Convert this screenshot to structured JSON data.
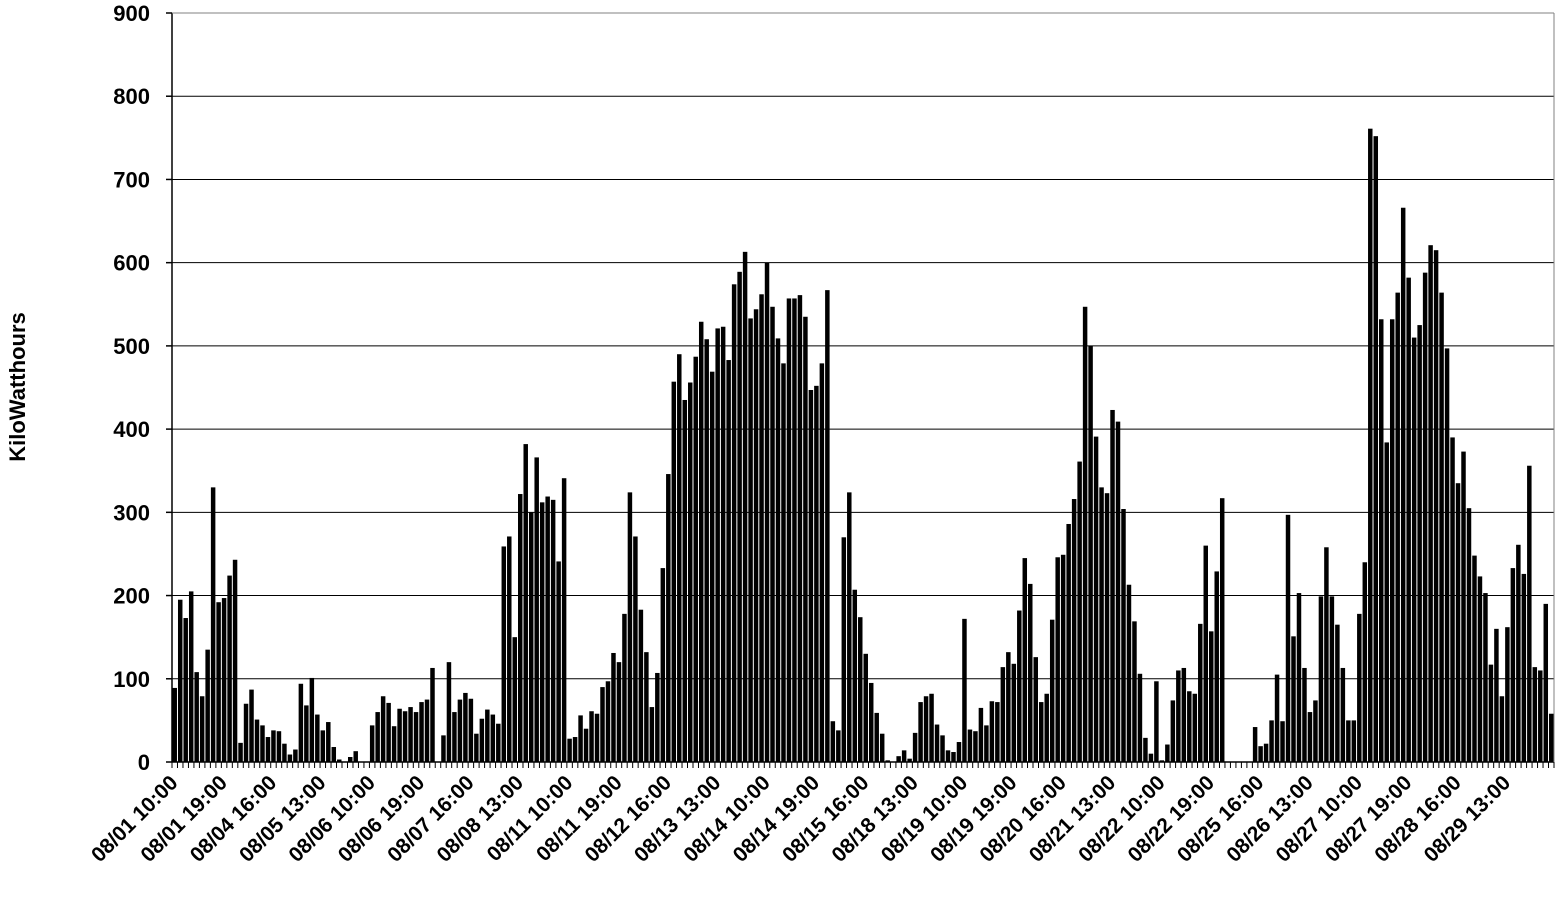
{
  "chart_data": {
    "type": "bar",
    "title": "",
    "xlabel": "",
    "ylabel": "KiloWatthours",
    "ylim": [
      0,
      900
    ],
    "yticks": [
      0,
      100,
      200,
      300,
      400,
      500,
      600,
      700,
      800,
      900
    ],
    "grid": true,
    "legend": "none",
    "colors": {
      "bar": "#000000",
      "bar_edge": "#ffffff",
      "grid": "#000000",
      "axis": "#000000"
    },
    "x_tick_labels": [
      "08/01 10:00",
      "08/01 19:00",
      "08/04 16:00",
      "08/05 13:00",
      "08/06 10:00",
      "08/06 19:00",
      "08/07 16:00",
      "08/08 13:00",
      "08/11 10:00",
      "08/11 19:00",
      "08/12 16:00",
      "08/13 13:00",
      "08/14 10:00",
      "08/14 19:00",
      "08/15 16:00",
      "08/18 13:00",
      "08/19 10:00",
      "08/19 19:00",
      "08/20 16:00",
      "08/21 13:00",
      "08/22 10:00",
      "08/22 19:00",
      "08/25 16:00",
      "08/26 13:00",
      "08/27 10:00",
      "08/27 19:00",
      "08/28 16:00",
      "08/29 13:00"
    ],
    "values": [
      89,
      195,
      173,
      205,
      108,
      79,
      135,
      330,
      192,
      197,
      224,
      243,
      23,
      70,
      87,
      51,
      44,
      30,
      38,
      37,
      22,
      9,
      15,
      94,
      68,
      101,
      57,
      38,
      48,
      18,
      3,
      0,
      6,
      13,
      0,
      0,
      44,
      60,
      79,
      71,
      43,
      64,
      61,
      66,
      60,
      72,
      75,
      113,
      0,
      32,
      120,
      60,
      75,
      83,
      76,
      34,
      52,
      63,
      57,
      46,
      259,
      271,
      150,
      322,
      382,
      300,
      366,
      312,
      319,
      315,
      241,
      341,
      28,
      30,
      56,
      40,
      61,
      58,
      90,
      97,
      131,
      120,
      178,
      324,
      271,
      183,
      132,
      66,
      107,
      233,
      346,
      457,
      490,
      435,
      456,
      487,
      529,
      508,
      469,
      521,
      523,
      483,
      574,
      589,
      613,
      533,
      544,
      562,
      600,
      547,
      509,
      479,
      557,
      557,
      561,
      535,
      447,
      452,
      479,
      567,
      49,
      38,
      270,
      324,
      207,
      174,
      130,
      95,
      59,
      34,
      2,
      0,
      7,
      14,
      4,
      35,
      72,
      79,
      82,
      45,
      32,
      14,
      12,
      24,
      172,
      39,
      37,
      65,
      44,
      73,
      72,
      114,
      132,
      118,
      182,
      245,
      214,
      126,
      72,
      82,
      171,
      246,
      249,
      286,
      316,
      361,
      547,
      500,
      391,
      330,
      323,
      423,
      409,
      304,
      213,
      169,
      106,
      29,
      10,
      97,
      2,
      21,
      74,
      110,
      113,
      85,
      82,
      166,
      260,
      157,
      229,
      317,
      0,
      0,
      0,
      0,
      0,
      42,
      19,
      22,
      50,
      105,
      49,
      297,
      151,
      203,
      113,
      60,
      74,
      199,
      258,
      199,
      165,
      113,
      50,
      50,
      178,
      240,
      761,
      752,
      532,
      384,
      532,
      564,
      666,
      582,
      510,
      525,
      588,
      621,
      615,
      564,
      497,
      390,
      335,
      373,
      305,
      248,
      223,
      203,
      117,
      160,
      79,
      162,
      233,
      261,
      226,
      356,
      114,
      110,
      190,
      58
    ]
  }
}
